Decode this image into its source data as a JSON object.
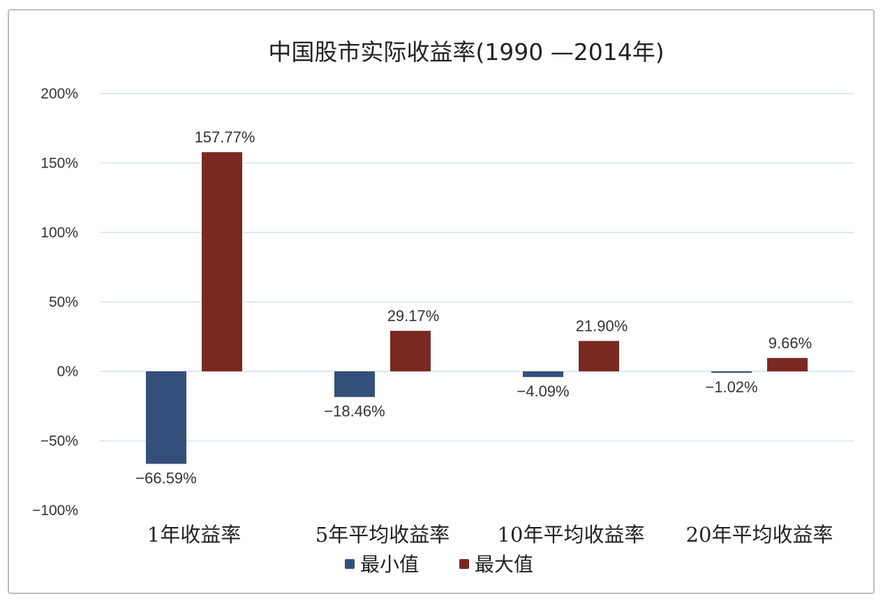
{
  "chart_data": {
    "type": "bar",
    "title": "中国股市实际收益率(1990 —2014年)",
    "categories": [
      "1年收益率",
      "5年平均收益率",
      "10年平均收益率",
      "20年平均收益率"
    ],
    "series": [
      {
        "name": "最小值",
        "color": "#344f7a",
        "values": [
          -66.59,
          -18.46,
          -4.09,
          -1.02
        ],
        "labels": [
          "−66.59%",
          "−18.46%",
          "−4.09%",
          "−1.02%"
        ]
      },
      {
        "name": "最大值",
        "color": "#7a2922",
        "values": [
          157.77,
          29.17,
          21.9,
          9.66
        ],
        "labels": [
          "157.77%",
          "29.17%",
          "21.90%",
          "9.66%"
        ]
      }
    ],
    "ylim": [
      -100,
      200
    ],
    "yticks": [
      -100,
      -50,
      0,
      50,
      100,
      150,
      200
    ],
    "ytick_labels": [
      "−100%",
      "−50%",
      "0%",
      "50%",
      "100%",
      "150%",
      "200%"
    ],
    "grid": true,
    "legend_position": "bottom-center"
  }
}
